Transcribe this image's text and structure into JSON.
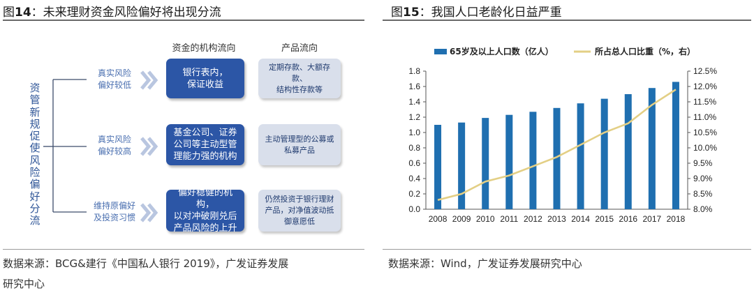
{
  "left_figure": {
    "fig_label": "图",
    "fig_number": "14",
    "fig_title": "未来理财资金风险偏好将出现分流",
    "vertical_title": [
      "资",
      "管",
      "新",
      "规",
      "促",
      "使",
      "风",
      "险",
      "偏",
      "好",
      "分",
      "流"
    ],
    "col_header_institution": "资金的机构流向",
    "col_header_product": "产品流向",
    "rows": [
      {
        "preference": "真实风险\n偏好较低",
        "institution": "银行表内，\n保证收益",
        "product": "定期存款、大额存款、\n结构性存款等"
      },
      {
        "preference": "真实风险\n偏好较高",
        "institution": "基金公司、证券\n公司等主动型管\n理能力强的机构",
        "product": "主动管理型的公募或\n私募产品"
      },
      {
        "preference": "维持原偏好\n及投资习惯",
        "institution": "偏好稳健的机构，\n以对冲破刚兑后\n产品风险的上升",
        "product": "仍然投资于银行理财\n产品，对净值波动抵\n御意愿低"
      }
    ],
    "source": "数据来源：BCG&建行《中国私人银行 2019》，广发证券发展",
    "source_cont": "研究中心"
  },
  "right_figure": {
    "fig_label": "图",
    "fig_number": "15",
    "fig_title": "我国人口老龄化日益严重",
    "source": "数据来源：Wind，广发证券发展研究中心"
  },
  "colors": {
    "bar": "#1f6fb0",
    "line": "#e3cf85",
    "institution_box": "#2c56a6",
    "product_box": "#d9dfeb",
    "accent_text": "#2e5597"
  },
  "chart_data": {
    "type": "bar+line",
    "title": "我国人口老龄化日益严重",
    "categories": [
      "2008",
      "2009",
      "2010",
      "2011",
      "2012",
      "2013",
      "2014",
      "2015",
      "2016",
      "2017",
      "2018"
    ],
    "series": [
      {
        "name": "65岁及以上人口数（亿人）",
        "type": "bar",
        "axis": "left",
        "values": [
          1.1,
          1.13,
          1.19,
          1.23,
          1.27,
          1.32,
          1.38,
          1.44,
          1.5,
          1.58,
          1.66
        ]
      },
      {
        "name": "所占总人口比重（%，右）",
        "type": "line",
        "axis": "right",
        "values": [
          8.3,
          8.5,
          8.9,
          9.1,
          9.4,
          9.7,
          10.1,
          10.5,
          10.8,
          11.4,
          11.9
        ]
      }
    ],
    "y_left": {
      "min": 0,
      "max": 1.8,
      "ticks": [
        "0.0",
        "0.2",
        "0.4",
        "0.6",
        "0.8",
        "1.0",
        "1.2",
        "1.4",
        "1.6",
        "1.8"
      ]
    },
    "y_right": {
      "min": 8.0,
      "max": 12.5,
      "ticks": [
        "8.0%",
        "8.5%",
        "9.0%",
        "9.5%",
        "10.0%",
        "10.5%",
        "11.0%",
        "11.5%",
        "12.0%",
        "12.5%"
      ]
    },
    "legend_position": "top",
    "grid": false
  }
}
